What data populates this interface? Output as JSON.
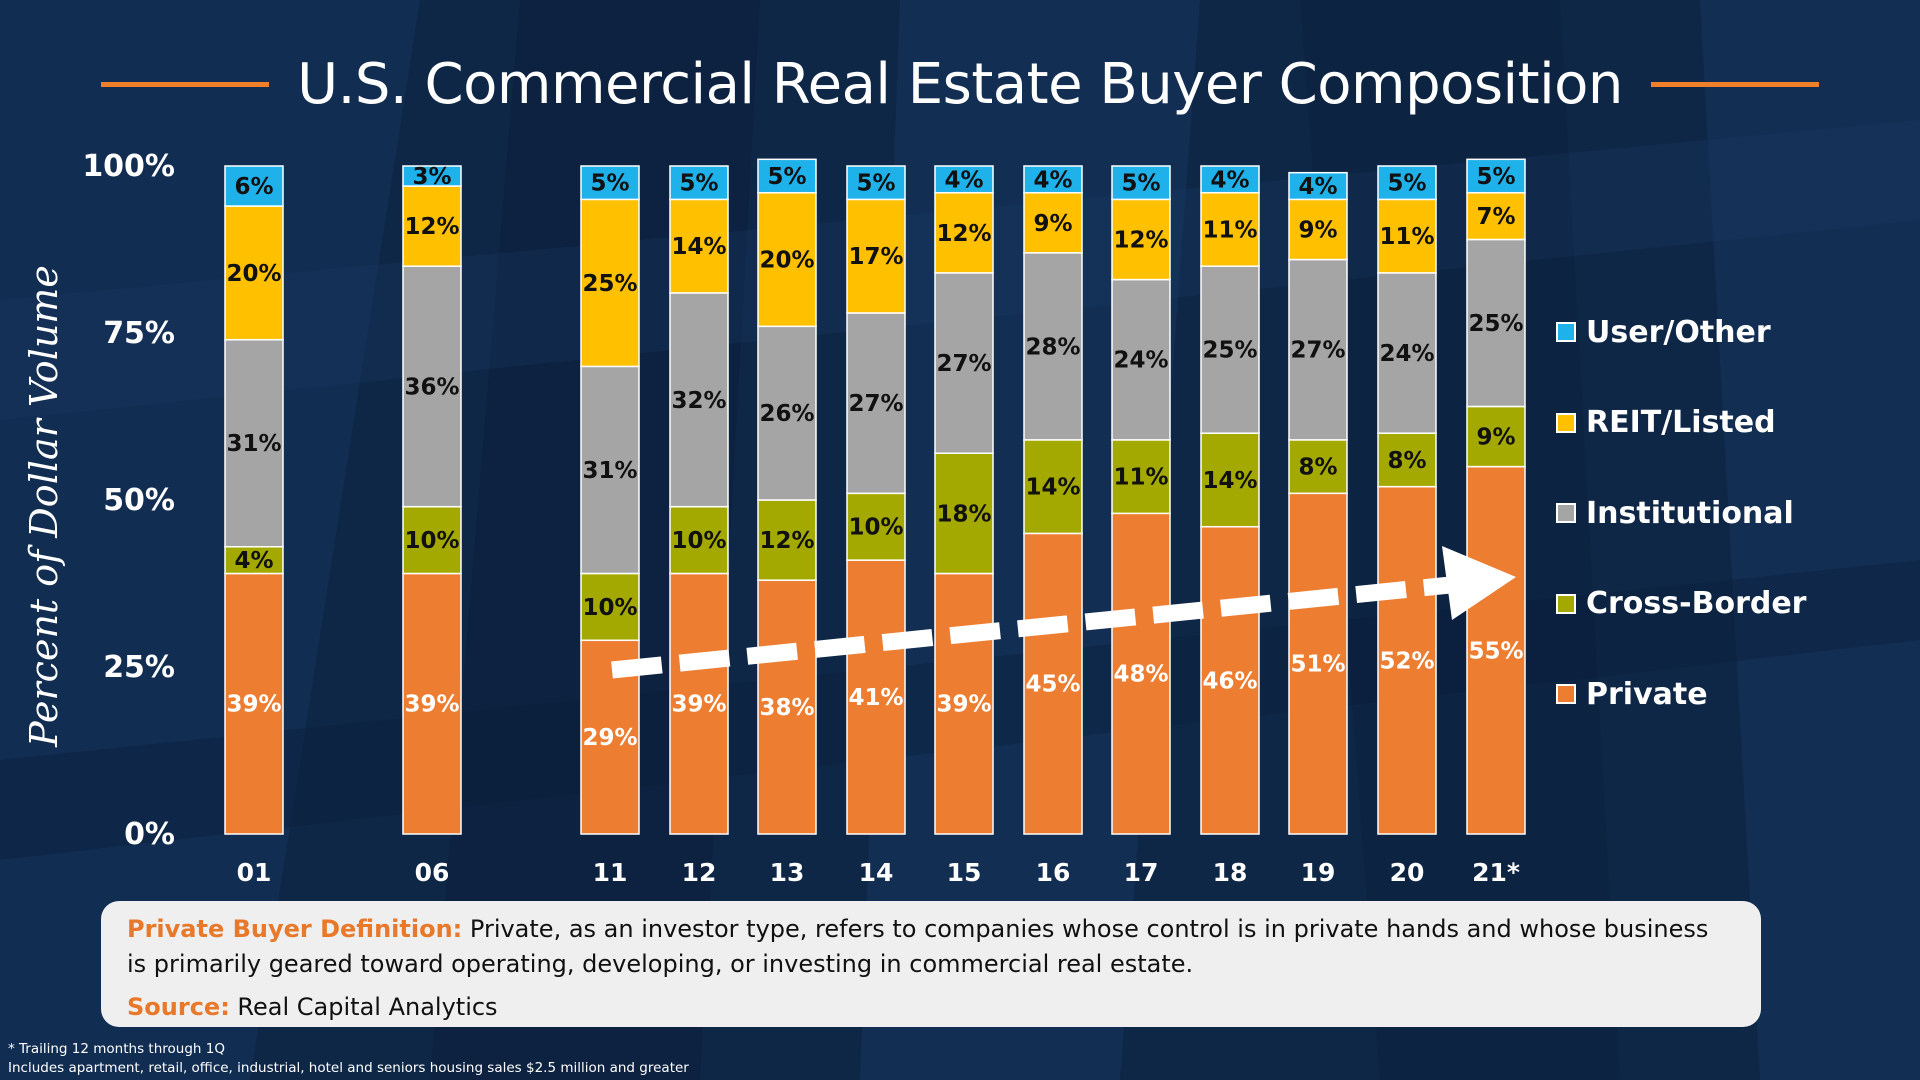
{
  "title": "U.S. Commercial Real Estate Buyer Composition",
  "colors": {
    "private": "#ed7d31",
    "cross_border": "#a4a900",
    "institutional": "#a5a5a5",
    "reit": "#ffc000",
    "user": "#1eb1ea",
    "accent": "#f07f2a",
    "background": "#0f2747"
  },
  "legend": {
    "items": [
      {
        "label": "User/Other",
        "color": "#1eb1ea"
      },
      {
        "label": "REIT/Listed",
        "color": "#ffc000"
      },
      {
        "label": "Institutional",
        "color": "#a5a5a5"
      },
      {
        "label": "Cross-Border",
        "color": "#a4a900"
      },
      {
        "label": "Private",
        "color": "#ed7d31"
      }
    ]
  },
  "chart_data": {
    "type": "bar",
    "stacked": true,
    "title": "U.S. Commercial Real Estate Buyer Composition",
    "xlabel": "",
    "ylabel": "Percent of Dollar Volume",
    "ylim": [
      0,
      100
    ],
    "yticks": [
      "0%",
      "25%",
      "50%",
      "75%",
      "100%"
    ],
    "categories": [
      "01",
      "06",
      "11",
      "12",
      "13",
      "14",
      "15",
      "16",
      "17",
      "18",
      "19",
      "20",
      "21*"
    ],
    "series": [
      {
        "name": "Private",
        "color": "#ed7d31",
        "label_color": "#ffffff",
        "values": [
          39,
          39,
          29,
          39,
          38,
          41,
          39,
          45,
          48,
          46,
          51,
          52,
          55
        ]
      },
      {
        "name": "Cross-Border",
        "color": "#a4a900",
        "label_color": "#111111",
        "values": [
          4,
          10,
          10,
          10,
          12,
          10,
          18,
          14,
          11,
          14,
          8,
          8,
          9
        ]
      },
      {
        "name": "Institutional",
        "color": "#a5a5a5",
        "label_color": "#111111",
        "values": [
          31,
          36,
          31,
          32,
          26,
          27,
          27,
          28,
          24,
          25,
          27,
          24,
          25
        ]
      },
      {
        "name": "REIT/Listed",
        "color": "#ffc000",
        "label_color": "#111111",
        "values": [
          20,
          12,
          25,
          14,
          20,
          17,
          12,
          9,
          12,
          11,
          9,
          11,
          7
        ]
      },
      {
        "name": "User/Other",
        "color": "#1eb1ea",
        "label_color": "#111111",
        "values": [
          6,
          3,
          5,
          5,
          5,
          5,
          4,
          4,
          5,
          4,
          4,
          5,
          5
        ]
      }
    ],
    "annotation": "Upward trend arrow across Private share from 11 to 21*"
  },
  "info": {
    "definition_label": "Private Buyer Definition:",
    "definition_text": " Private, as an investor type, refers to companies whose control is in private hands and whose business is primarily geared toward operating, developing, or investing in commercial real estate.",
    "source_label": "Source:",
    "source_text": " Real Capital Analytics"
  },
  "footnotes": {
    "line1": "* Trailing 12 months through 1Q",
    "line2": "Includes apartment, retail, office, industrial, hotel and seniors housing sales $2.5 million and greater"
  }
}
